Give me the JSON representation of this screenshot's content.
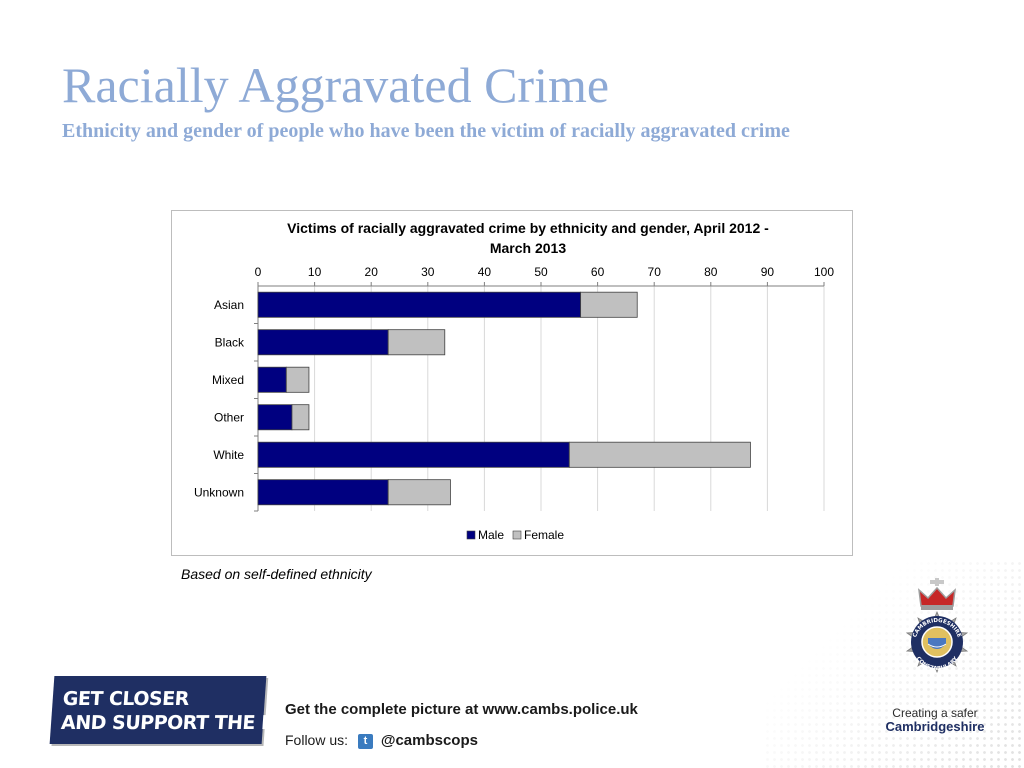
{
  "slide": {
    "title": "Racially Aggravated Crime",
    "subtitle": "Ethnicity and gender of people who have been the victim of racially aggravated crime",
    "note": "Based on self-defined ethnicity"
  },
  "chart_data": {
    "type": "bar",
    "orientation": "horizontal",
    "stacked": true,
    "title_lines": [
      "Victims of racially aggravated crime by ethnicity and gender, April 2012 -",
      "March 2013"
    ],
    "categories": [
      "Asian",
      "Black",
      "Mixed",
      "Other",
      "White",
      "Unknown"
    ],
    "series": [
      {
        "name": "Male",
        "color": "#000080",
        "values": [
          57,
          23,
          5,
          6,
          55,
          23
        ]
      },
      {
        "name": "Female",
        "color": "#c0c0c0",
        "values": [
          10,
          10,
          4,
          3,
          32,
          11
        ]
      }
    ],
    "xlim": [
      0,
      100
    ],
    "xticks": [
      "0",
      "10",
      "20",
      "30",
      "40",
      "50",
      "60",
      "70",
      "80",
      "90",
      "100"
    ],
    "xaxis_position": "top",
    "grid": true,
    "legend": "bottom"
  },
  "footer": {
    "banner_line1": "GET CLOSER",
    "banner_line2": "AND SUPPORT THE FORCE!",
    "website_text": "Get the complete picture at www.cambs.police.uk",
    "follow_label": "Follow us:",
    "twitter_glyph": "t",
    "twitter_handle": "@cambscops"
  },
  "logo": {
    "text_top": "CAMBRIDGESHIRE",
    "text_bottom": "CONSTABULARY",
    "tagline_line1": "Creating a safer",
    "tagline_line2": "Cambridgeshire"
  }
}
